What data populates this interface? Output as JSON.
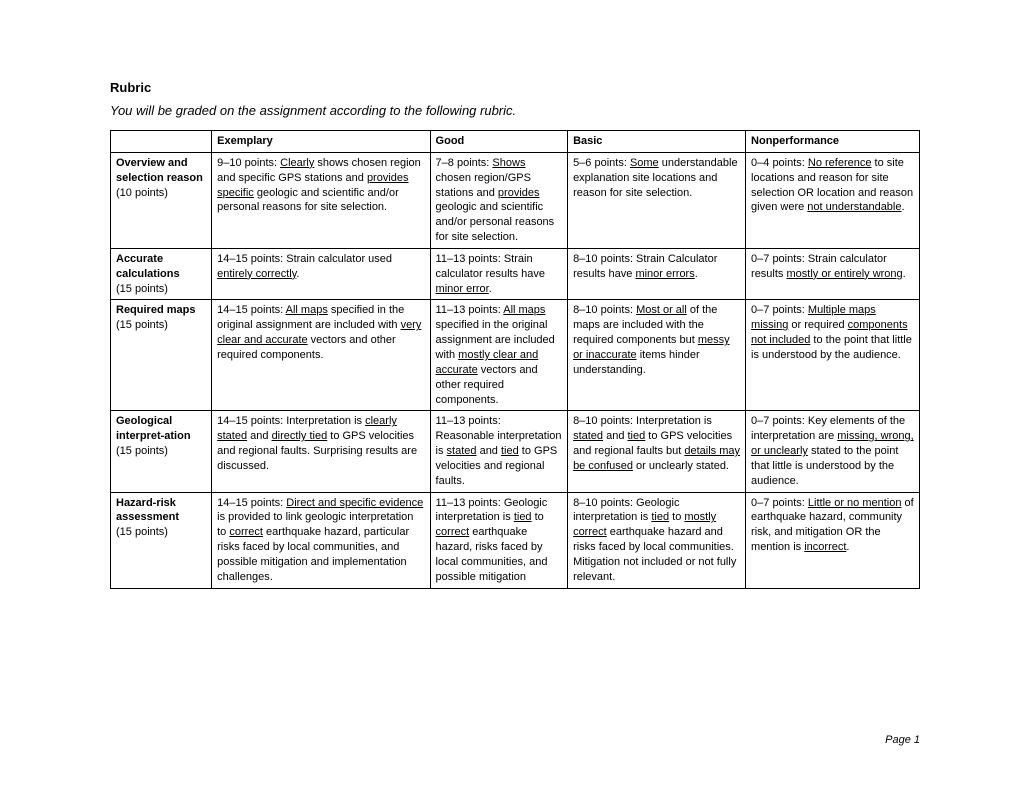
{
  "title": "Rubric",
  "subtitle": "You will be graded on the assignment according to the following rubric.",
  "footer": "Page 1",
  "columns": [
    "",
    "Exemplary",
    "Good",
    "Basic",
    "Nonperformance"
  ],
  "rows": [
    {
      "label_bold": "Overview and selection reason",
      "label_plain": "(10 points)",
      "c1": "9–10 points: <u>Clearly</u> shows chosen region and specific GPS stations and <u>provides specific</u> geologic and scientific and/or personal reasons for site selection.",
      "c2": "7–8 points: <u>Shows</u> chosen region/GPS stations and <u>provides</u> geologic and scientific and/or personal reasons for site selection.",
      "c3": "5–6 points: <u>Some</u> understandable explanation site locations and reason for site selection.",
      "c4": "0–4 points: <u>No reference</u> to site locations and reason for site selection OR location and reason given were <u>not understandable</u>."
    },
    {
      "label_bold": "Accurate calculations",
      "label_plain": "(15 points)",
      "c1": "14–15 points: Strain calculator used <u>entirely correctly</u>.",
      "c2": "11–13 points: Strain calculator results have <u>minor error</u>.",
      "c3": "8–10 points: Strain Calculator results have <u>minor errors</u>.",
      "c4": "0–7 points: Strain calculator results <u>mostly or entirely wrong</u>."
    },
    {
      "label_bold": "Required maps",
      "label_plain": "(15 points)",
      "c1": "14–15 points: <u>All maps</u> specified in the original assignment are included with <u>very clear and accurate</u> vectors and other required components.",
      "c2": "11–13 points: <u>All maps</u> specified in the original assignment are included with <u>mostly clear and accurate</u> vectors and other required components.",
      "c3": "8–10 points: <u>Most or all</u> of the maps are included with the required components but <u>messy or inaccurate</u> items hinder understanding.",
      "c4": "0–7 points: <u>Multiple maps missing</u> or required <u>components not included</u> to the point that little is understood by the audience."
    },
    {
      "label_bold": "Geological interpret-ation",
      "label_plain": "(15 points)",
      "c1": "14–15 points: Interpretation is <u>clearly stated</u> and <u>directly tied</u> to GPS velocities and regional faults. Surprising results are discussed.",
      "c2": "11–13 points: Reasonable interpretation is <u>stated</u> and <u>tied</u> to GPS velocities and regional faults.",
      "c3": "8–10 points: Interpretation is <u>stated</u> and <u>tied</u> to GPS velocities and regional faults but <u>details may be confused</u> or unclearly stated.",
      "c4": "0–7 points: Key elements of the interpretation are <u>missing, wrong, or unclearly</u> stated to the point that little is understood by the audience."
    },
    {
      "label_bold": "Hazard-risk assessment",
      "label_plain": "(15 points)",
      "c1": "14–15 points: <u>Direct and specific evidence</u> is provided to link geologic interpretation to <u>correct</u> earthquake hazard, particular risks faced by local communities, and possible mitigation and implementation challenges.",
      "c2": "11–13 points: Geologic interpretation is <u>tied</u> to <u>correct</u> earthquake hazard, risks faced by local communities, and possible mitigation",
      "c3": "8–10 points: Geologic interpretation is <u>tied</u> to <u>mostly correct</u> earthquake hazard and risks faced by local communities. Mitigation not included or not fully relevant.",
      "c4": "0–7 points: <u>Little or no mention</u> of earthquake hazard, community risk, and mitigation OR the mention is <u>incorrect</u>."
    }
  ]
}
